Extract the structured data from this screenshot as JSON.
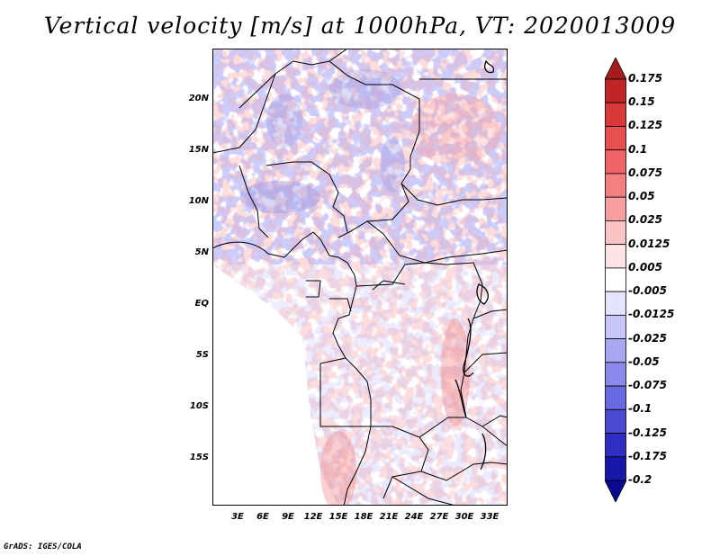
{
  "title": "Vertical velocity [m/s] at 1000hPa, VT: 2020013009",
  "credit": "GrADS: IGES/COLA",
  "map": {
    "lat_range": [
      -19,
      25
    ],
    "lon_range": [
      0,
      35
    ],
    "lat_labels": [
      "20N",
      "15N",
      "10N",
      "5N",
      "EQ",
      "5S",
      "10S",
      "15S"
    ],
    "lon_labels": [
      "3E",
      "6E",
      "9E",
      "12E",
      "15E",
      "18E",
      "21E",
      "24E",
      "27E",
      "30E",
      "33E"
    ]
  },
  "colorbar": {
    "labels": [
      "0.175",
      "0.15",
      "0.125",
      "0.1",
      "0.075",
      "0.05",
      "0.025",
      "0.0125",
      "0.005",
      "-0.005",
      "-0.0125",
      "-0.025",
      "-0.05",
      "-0.075",
      "-0.1",
      "-0.125",
      "-0.175",
      "-0.2"
    ],
    "colors": [
      "#a51c1c",
      "#c02626",
      "#d83a3a",
      "#e85050",
      "#f06666",
      "#f58080",
      "#f8a0a0",
      "#fbc4c4",
      "#fde4e4",
      "#ffffff",
      "#e4e4fd",
      "#c8c8f8",
      "#a8a8f2",
      "#8a8aec",
      "#6a6ae0",
      "#4a4ad2",
      "#2e2ec0",
      "#1818a8",
      "#0a0a90"
    ]
  }
}
